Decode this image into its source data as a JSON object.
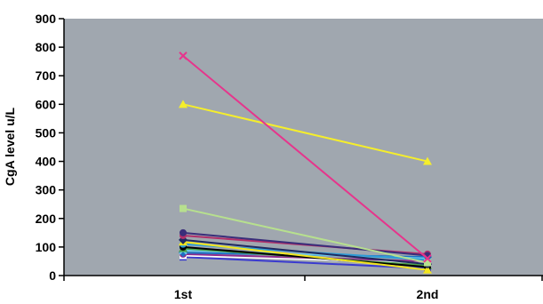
{
  "chart_data": {
    "type": "line",
    "title": "",
    "xlabel": "",
    "ylabel": "CgA level u/L",
    "categories": [
      "1st",
      "2nd"
    ],
    "ylim": [
      0,
      900
    ],
    "yticks": [
      0,
      100,
      200,
      300,
      400,
      500,
      600,
      700,
      800,
      900
    ],
    "grid": false,
    "plot_background": "#A0A7AF",
    "series": [
      {
        "values": [
          770,
          60
        ],
        "color": "#E6358C",
        "marker": "x"
      },
      {
        "values": [
          600,
          400
        ],
        "color": "#F5EE2B",
        "marker": "triangle"
      },
      {
        "values": [
          235,
          45
        ],
        "color": "#B7E08E",
        "marker": "square"
      },
      {
        "values": [
          150,
          70
        ],
        "color": "#3A2E7A",
        "marker": "circle"
      },
      {
        "values": [
          140,
          75
        ],
        "color": "#B0306A",
        "marker": "circle"
      },
      {
        "values": [
          125,
          40
        ],
        "color": "#1F2A60",
        "marker": "diamond"
      },
      {
        "values": [
          118,
          20
        ],
        "color": "#F3E61E",
        "marker": "triangle"
      },
      {
        "values": [
          110,
          55
        ],
        "color": "#2D9BD6",
        "marker": "circle"
      },
      {
        "values": [
          100,
          30
        ],
        "color": "#000000",
        "marker": "circle"
      },
      {
        "values": [
          95,
          35
        ],
        "color": "#4CA24A",
        "marker": "triangle"
      },
      {
        "values": [
          88,
          60
        ],
        "color": "#6CC8E8",
        "marker": "x"
      },
      {
        "values": [
          80,
          65
        ],
        "color": "#1B70C4",
        "marker": "diamond"
      },
      {
        "values": [
          75,
          50
        ],
        "color": "#8E2D8E",
        "marker": "circle"
      },
      {
        "values": [
          70,
          45
        ],
        "color": "#FFFFFF",
        "marker": "square"
      },
      {
        "values": [
          65,
          25
        ],
        "color": "#3A3ACF",
        "marker": "square"
      }
    ]
  }
}
